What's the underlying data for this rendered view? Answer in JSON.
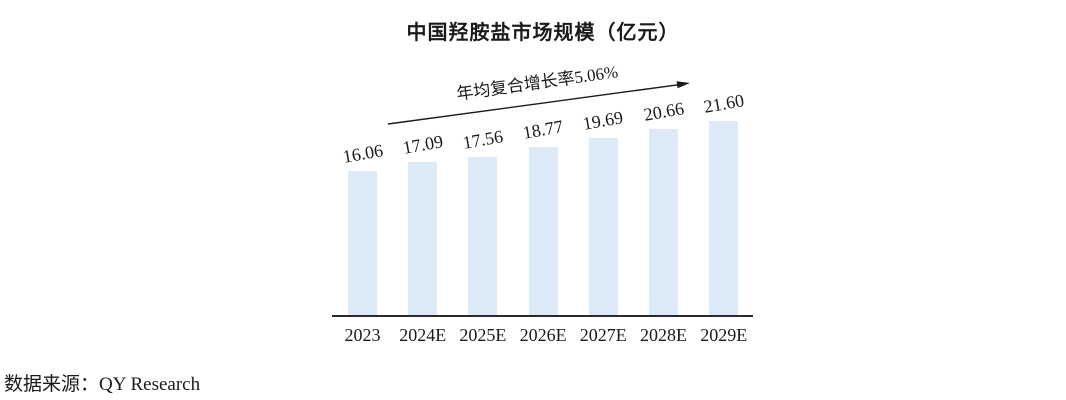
{
  "chart_data": {
    "type": "bar",
    "title": "中国羟胺盐市场规模（亿元）",
    "annotation": "年均复合增长率5.06%",
    "categories": [
      "2023",
      "2024E",
      "2025E",
      "2026E",
      "2027E",
      "2028E",
      "2029E"
    ],
    "values": [
      16.06,
      17.09,
      17.56,
      18.77,
      19.69,
      20.66,
      21.6
    ],
    "data_labels": [
      "16.06",
      "17.09",
      "17.56",
      "18.77",
      "19.69",
      "20.66",
      "21.60"
    ],
    "xlabel": "",
    "ylabel": "",
    "ylim": [
      0,
      24
    ],
    "grid": false,
    "legend": "none",
    "bar_color": "#dbeaf6",
    "axis_color": "#2b2b2b",
    "text_color": "#1a1a1a"
  },
  "source": {
    "label": "数据来源：QY Research"
  }
}
